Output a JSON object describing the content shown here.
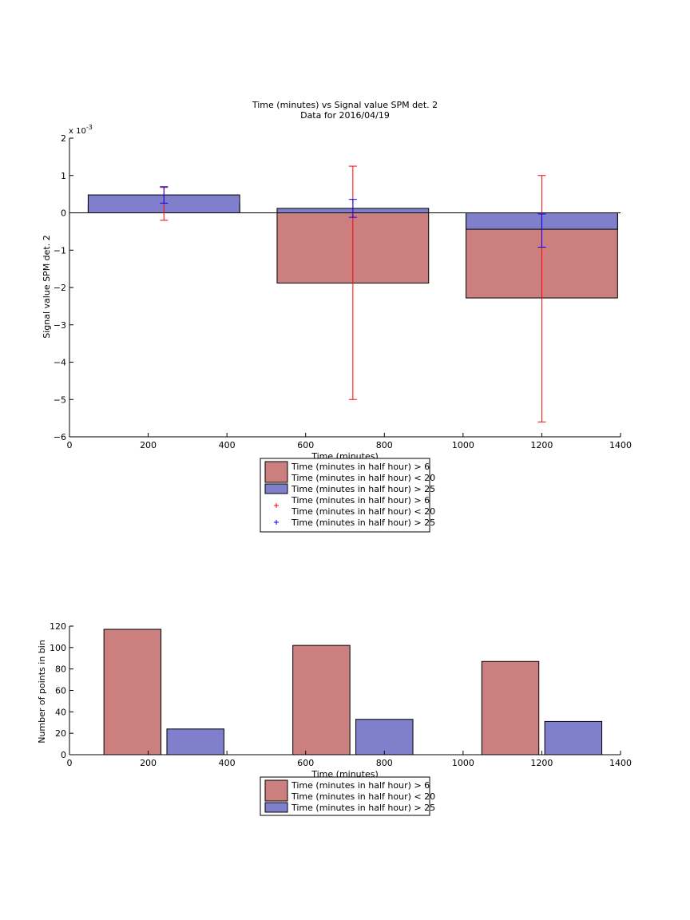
{
  "colors": {
    "red_fill": "#cc7f7f",
    "blue_fill": "#7f7fcc",
    "red_err": "#ff0000",
    "blue_err": "#0000ff",
    "axis": "#000000"
  },
  "chart_data": [
    {
      "type": "bar",
      "title": "Time (minutes) vs Signal value SPM det. 2",
      "subtitle": "Data for 2016/04/19",
      "xlabel": "Time (minutes)",
      "ylabel": "Signal value SPM det. 2",
      "y_multiplier_label": "x 10",
      "y_multiplier_exp": "-3",
      "xlim": [
        0,
        1400
      ],
      "ylim": [
        -6,
        2
      ],
      "xticks": [
        0,
        200,
        400,
        600,
        800,
        1000,
        1200,
        1400
      ],
      "yticks": [
        -6,
        -5,
        -4,
        -3,
        -2,
        -1,
        0,
        1,
        2
      ],
      "grid": false,
      "bar_width": 385,
      "x": [
        240,
        720,
        1200
      ],
      "series": [
        {
          "name": "Time (minutes in half hour) > 6\nTime (minutes in half hour) < 20",
          "color_key": "red_fill",
          "values": [
            0.24,
            -1.88,
            -2.28
          ],
          "err_low": [
            -0.2,
            -5.0,
            -5.6
          ],
          "err_high": [
            0.68,
            1.25,
            1.0
          ]
        },
        {
          "name": "Time (minutes in half hour) > 25",
          "color_key": "blue_fill",
          "values": [
            0.48,
            0.12,
            -0.44
          ],
          "err_low": [
            0.26,
            -0.12,
            -0.92
          ],
          "err_high": [
            0.7,
            0.36,
            -0.03
          ]
        }
      ],
      "legend": {
        "placement": "below",
        "entries": [
          {
            "kind": "bar",
            "color_key": "red_fill",
            "lines": [
              "Time (minutes in half hour) > 6",
              "Time (minutes in half hour) < 20"
            ]
          },
          {
            "kind": "bar",
            "color_key": "blue_fill",
            "lines": [
              "Time (minutes in half hour) > 25"
            ]
          },
          {
            "kind": "marker",
            "color_key": "red_err",
            "lines": [
              "Time (minutes in half hour) > 6",
              "Time (minutes in half hour) < 20"
            ]
          },
          {
            "kind": "marker",
            "color_key": "blue_err",
            "lines": [
              "Time (minutes in half hour) > 25"
            ]
          }
        ]
      }
    },
    {
      "type": "bar",
      "xlabel": "Time (minutes)",
      "ylabel": "Number of points in bin",
      "xlim": [
        0,
        1400
      ],
      "ylim": [
        0,
        120
      ],
      "xticks": [
        0,
        200,
        400,
        600,
        800,
        1000,
        1200,
        1400
      ],
      "yticks": [
        0,
        20,
        40,
        60,
        80,
        100,
        120
      ],
      "grid": false,
      "bar_width": 145,
      "series": [
        {
          "name": "Time (minutes in half hour) > 6\nTime (minutes in half hour) < 20",
          "color_key": "red_fill",
          "x": [
            160,
            640,
            1120
          ],
          "values": [
            117,
            102,
            87
          ]
        },
        {
          "name": "Time (minutes in half hour) > 25",
          "color_key": "blue_fill",
          "x": [
            320,
            800,
            1280
          ],
          "values": [
            24,
            33,
            31
          ]
        }
      ],
      "legend": {
        "placement": "below",
        "entries": [
          {
            "kind": "bar",
            "color_key": "red_fill",
            "lines": [
              "Time (minutes in half hour) > 6",
              "Time (minutes in half hour) < 20"
            ]
          },
          {
            "kind": "bar",
            "color_key": "blue_fill",
            "lines": [
              "Time (minutes in half hour) > 25"
            ]
          }
        ]
      }
    }
  ]
}
